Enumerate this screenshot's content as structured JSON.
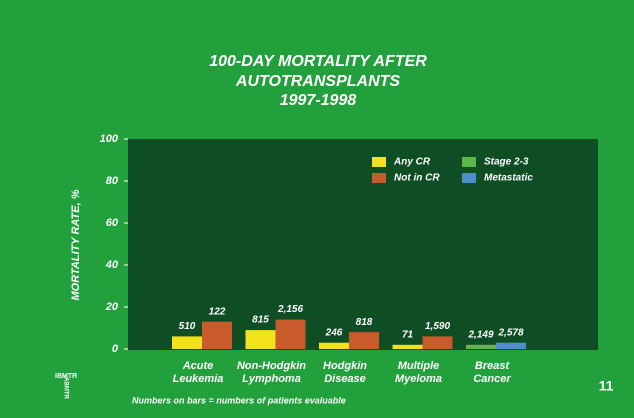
{
  "chart_data": {
    "type": "bar",
    "title": [
      "100-DAY MORTALITY AFTER",
      "AUTOTRANSPLANTS",
      "1997-1998"
    ],
    "y_label": "MORTALITY RATE, %",
    "categories": [
      [
        "Acute",
        "Leukemia"
      ],
      [
        "Non-Hodgkin",
        "Lymphoma"
      ],
      [
        "Hodgkin",
        "Disease"
      ],
      [
        "Multiple",
        "Myeloma"
      ],
      [
        "Breast",
        "Cancer"
      ]
    ],
    "series": [
      {
        "name": "Any CR",
        "color": "#f2e21c",
        "values": [
          6,
          9,
          3,
          2,
          null
        ],
        "patients": [
          "510",
          "815",
          "246",
          "71",
          null
        ]
      },
      {
        "name": "Not in CR",
        "color": "#c95a2b",
        "values": [
          13,
          14,
          8,
          6,
          null
        ],
        "patients": [
          "122",
          "2,156",
          "818",
          "1,590",
          null
        ]
      },
      {
        "name": "Stage 2-3",
        "color": "#5cb848",
        "values": [
          null,
          null,
          null,
          null,
          2
        ],
        "patients": [
          null,
          null,
          null,
          null,
          "2,149"
        ]
      },
      {
        "name": "Metastatic",
        "color": "#4a8fc9",
        "values": [
          null,
          null,
          null,
          null,
          3
        ],
        "patients": [
          null,
          null,
          null,
          null,
          "2,578"
        ]
      }
    ],
    "ylim": [
      0,
      100
    ],
    "yticks": [
      0,
      20,
      40,
      60,
      80,
      100
    ],
    "legend": "upper right",
    "footnote": "Numbers on bars = numbers of patients evaluable",
    "page_number": "11",
    "logo": [
      "IBMTR",
      "ABMTR"
    ]
  }
}
